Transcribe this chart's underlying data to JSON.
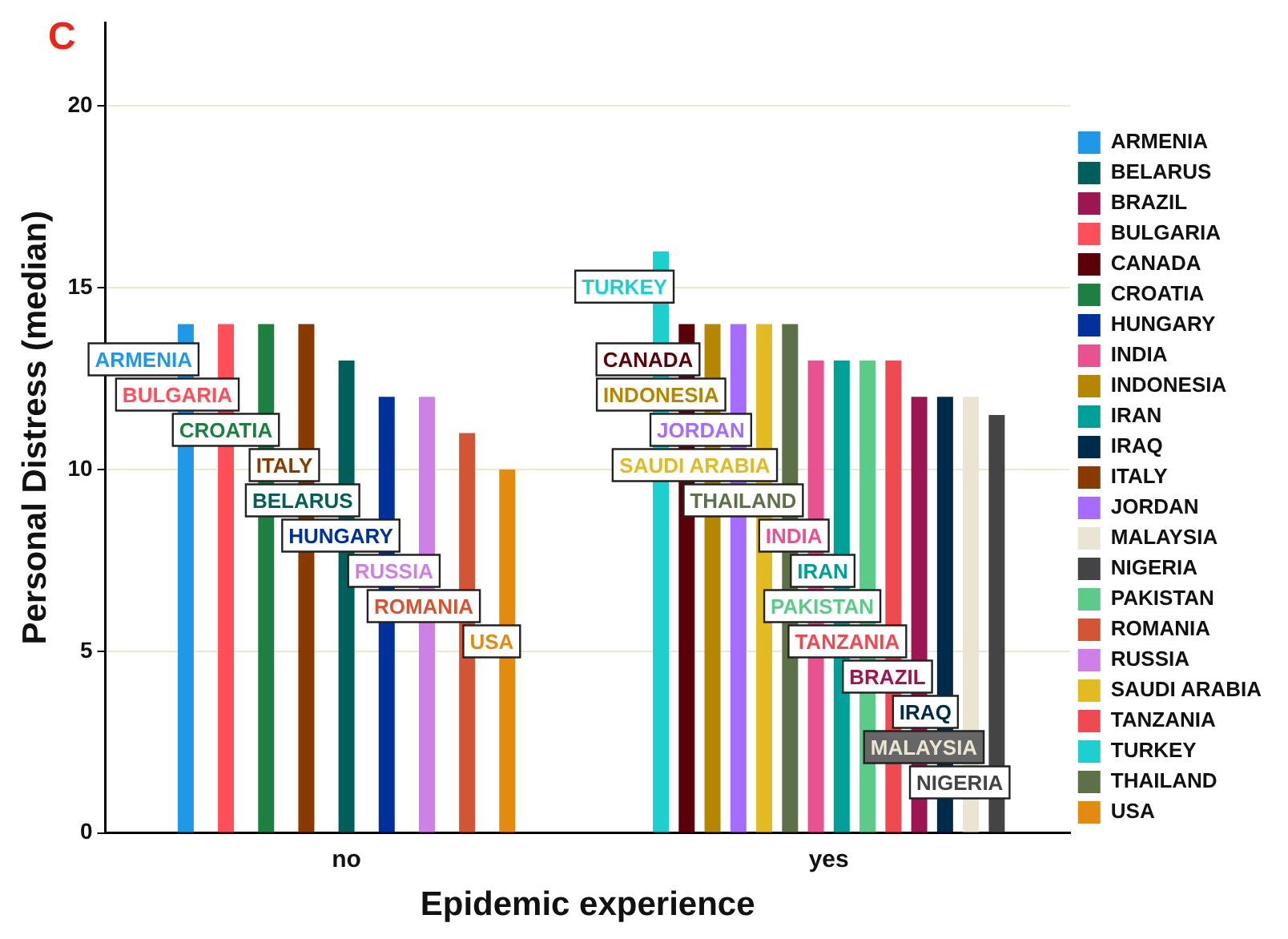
{
  "chart_data": {
    "type": "bar",
    "xlabel": "Epidemic experience",
    "ylabel": "Personal Distress (median)",
    "annotations": [
      "C"
    ],
    "categories": [
      "no",
      "yes"
    ],
    "ylim": [
      0,
      22.3
    ],
    "yticks": [
      0,
      5,
      10,
      15,
      20
    ],
    "grid": "y",
    "legend": "right",
    "series": [
      {
        "name": "ARMENIA",
        "color": "#1f98e8",
        "values": [
          14,
          null
        ]
      },
      {
        "name": "BELARUS",
        "color": "#005f5a",
        "values": [
          13,
          null
        ]
      },
      {
        "name": "BRAZIL",
        "color": "#9c1654",
        "values": [
          null,
          12
        ]
      },
      {
        "name": "BULGARIA",
        "color": "#ff4f5b",
        "values": [
          14,
          null
        ]
      },
      {
        "name": "CANADA",
        "color": "#5a0008",
        "values": [
          null,
          14
        ]
      },
      {
        "name": "CROATIA",
        "color": "#1e8040",
        "values": [
          14,
          null
        ]
      },
      {
        "name": "HUNGARY",
        "color": "#00309c",
        "values": [
          12,
          null
        ]
      },
      {
        "name": "INDIA",
        "color": "#ea5190",
        "values": [
          null,
          13
        ]
      },
      {
        "name": "INDONESIA",
        "color": "#b58700",
        "values": [
          null,
          14
        ]
      },
      {
        "name": "IRAN",
        "color": "#00a099",
        "values": [
          null,
          13
        ]
      },
      {
        "name": "IRAQ",
        "color": "#002a4a",
        "values": [
          null,
          12
        ]
      },
      {
        "name": "ITALY",
        "color": "#883a00",
        "values": [
          14,
          null
        ]
      },
      {
        "name": "JORDAN",
        "color": "#a66cff",
        "values": [
          null,
          14
        ]
      },
      {
        "name": "MALAYSIA",
        "color": "#ebe4d0",
        "values": [
          null,
          12
        ]
      },
      {
        "name": "NIGERIA",
        "color": "#444447",
        "values": [
          null,
          11.5
        ]
      },
      {
        "name": "PAKISTAN",
        "color": "#5ccb8a",
        "values": [
          null,
          13
        ]
      },
      {
        "name": "ROMANIA",
        "color": "#d25535",
        "values": [
          11,
          null
        ]
      },
      {
        "name": "RUSSIA",
        "color": "#cf80e6",
        "values": [
          12,
          null
        ]
      },
      {
        "name": "SAUDI ARABIA",
        "color": "#e2ba22",
        "values": [
          null,
          14
        ]
      },
      {
        "name": "TANZANIA",
        "color": "#ee4a50",
        "values": [
          null,
          13
        ]
      },
      {
        "name": "TURKEY",
        "color": "#1ecfd0",
        "values": [
          null,
          16
        ]
      },
      {
        "name": "THAILAND",
        "color": "#5d7048",
        "values": [
          null,
          14
        ]
      },
      {
        "name": "USA",
        "color": "#e38a10",
        "values": [
          10,
          null
        ]
      }
    ]
  }
}
